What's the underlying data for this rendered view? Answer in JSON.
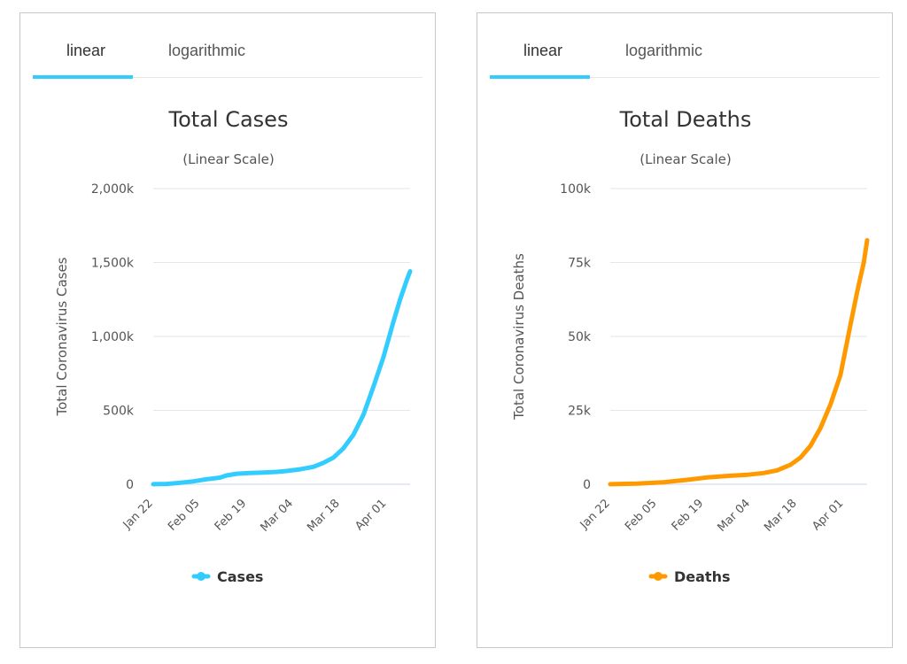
{
  "panels": [
    {
      "tabs": [
        {
          "label": "linear",
          "active": true
        },
        {
          "label": "logarithmic",
          "active": false
        }
      ],
      "accent_color": "#33ccff"
    },
    {
      "tabs": [
        {
          "label": "linear",
          "active": true
        },
        {
          "label": "logarithmic",
          "active": false
        }
      ],
      "accent_color": "#33ccff"
    }
  ],
  "chart_data": [
    {
      "type": "line",
      "title": "Total Cases",
      "subtitle": "(Linear Scale)",
      "ylabel": "Total Coronavirus Cases",
      "ylim": [
        0,
        2000000
      ],
      "yticks": [
        0,
        500000,
        1000000,
        1500000,
        2000000
      ],
      "ytick_labels": [
        "0",
        "500k",
        "1,000k",
        "1,500k",
        "2,000k"
      ],
      "xlim": [
        "2020-01-22",
        "2020-04-08"
      ],
      "xtick_labels": [
        "Jan 22",
        "Feb 05",
        "Feb 19",
        "Mar 04",
        "Mar 18",
        "Apr 01"
      ],
      "xtick_dates": [
        "2020-01-22",
        "2020-02-05",
        "2020-02-19",
        "2020-03-04",
        "2020-03-18",
        "2020-04-01"
      ],
      "grid": true,
      "legend": "bottom",
      "series": [
        {
          "name": "Cases",
          "color": "#33ccff",
          "x": [
            "2020-01-22",
            "2020-01-26",
            "2020-01-30",
            "2020-02-03",
            "2020-02-07",
            "2020-02-11",
            "2020-02-13",
            "2020-02-16",
            "2020-02-20",
            "2020-02-24",
            "2020-02-28",
            "2020-03-02",
            "2020-03-06",
            "2020-03-10",
            "2020-03-13",
            "2020-03-16",
            "2020-03-19",
            "2020-03-22",
            "2020-03-25",
            "2020-03-28",
            "2020-03-31",
            "2020-04-03",
            "2020-04-05",
            "2020-04-07",
            "2020-04-08"
          ],
          "values": [
            600,
            2100,
            9700,
            20000,
            34000,
            45000,
            60000,
            71000,
            76000,
            79000,
            84000,
            90000,
            101000,
            118000,
            145000,
            180000,
            243000,
            335000,
            470000,
            660000,
            860000,
            1100000,
            1250000,
            1380000,
            1440000
          ]
        }
      ]
    },
    {
      "type": "line",
      "title": "Total Deaths",
      "subtitle": "(Linear Scale)",
      "ylabel": "Total Coronavirus Deaths",
      "ylim": [
        0,
        100000
      ],
      "yticks": [
        0,
        25000,
        50000,
        75000,
        100000
      ],
      "ytick_labels": [
        "0",
        "25k",
        "50k",
        "75k",
        "100k"
      ],
      "xlim": [
        "2020-01-22",
        "2020-04-08"
      ],
      "xtick_labels": [
        "Jan 22",
        "Feb 05",
        "Feb 19",
        "Mar 04",
        "Mar 18",
        "Apr 01"
      ],
      "xtick_dates": [
        "2020-01-22",
        "2020-02-05",
        "2020-02-19",
        "2020-03-04",
        "2020-03-18",
        "2020-04-01"
      ],
      "grid": true,
      "legend": "bottom",
      "series": [
        {
          "name": "Deaths",
          "color": "#ff9900",
          "x": [
            "2020-01-22",
            "2020-01-30",
            "2020-02-07",
            "2020-02-14",
            "2020-02-20",
            "2020-02-26",
            "2020-03-03",
            "2020-03-08",
            "2020-03-12",
            "2020-03-16",
            "2020-03-19",
            "2020-03-22",
            "2020-03-25",
            "2020-03-28",
            "2020-03-31",
            "2020-04-03",
            "2020-04-05",
            "2020-04-07",
            "2020-04-08"
          ],
          "values": [
            17,
            200,
            700,
            1500,
            2300,
            2800,
            3200,
            3800,
            4700,
            6600,
            9000,
            13000,
            19000,
            27000,
            37000,
            54000,
            65000,
            75000,
            82500
          ]
        }
      ]
    }
  ]
}
